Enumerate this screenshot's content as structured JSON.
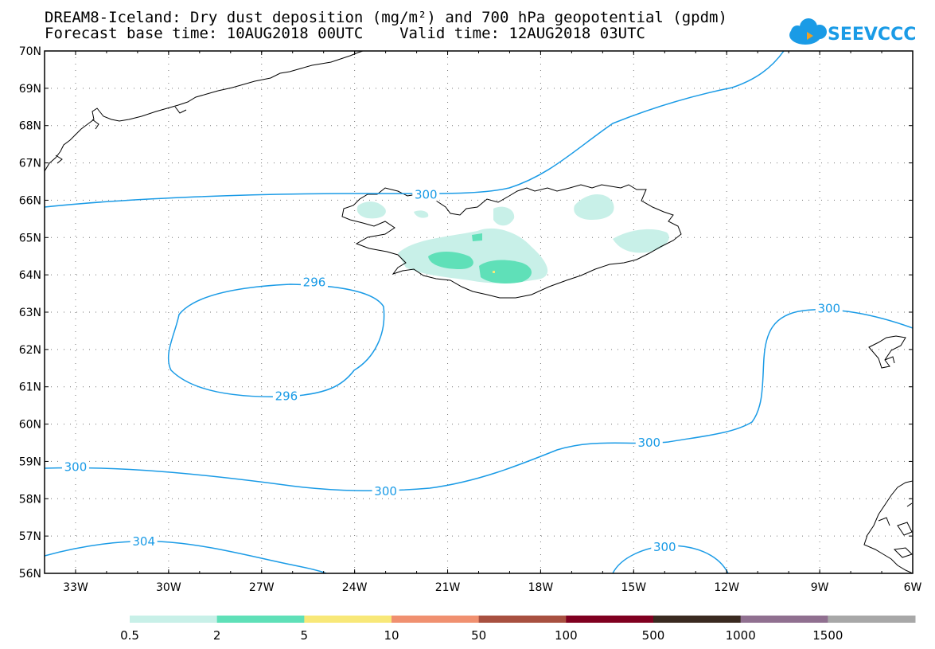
{
  "title_line1": "DREAM8-Iceland: Dry dust deposition (mg/m²) and 700 hPa geopotential (gpdm)",
  "title_line2": "Forecast base time: 10AUG2018 00UTC    Valid time: 12AUG2018 03UTC",
  "logo_text": "SEEVCCC",
  "colors": {
    "contour": "#1a9be6",
    "grid": "#777777",
    "coast": "#000000",
    "dust_light": "#c8f0e8",
    "dust_mid": "#5fe0b8"
  },
  "axes": {
    "lat_labels": [
      "70N",
      "69N",
      "68N",
      "67N",
      "66N",
      "65N",
      "64N",
      "63N",
      "62N",
      "61N",
      "60N",
      "59N",
      "58N",
      "57N",
      "56N"
    ],
    "lon_labels": [
      "33W",
      "30W",
      "27W",
      "24W",
      "21W",
      "18W",
      "15W",
      "12W",
      "9W",
      "6W"
    ]
  },
  "contour_labels": [
    {
      "text": "300",
      "lon": -21.7,
      "lat": 66.15
    },
    {
      "text": "296",
      "lon": -25.3,
      "lat": 63.8
    },
    {
      "text": "296",
      "lon": -26.2,
      "lat": 60.75
    },
    {
      "text": "300",
      "lon": -8.7,
      "lat": 63.1
    },
    {
      "text": "300",
      "lon": -33.0,
      "lat": 58.85
    },
    {
      "text": "300",
      "lon": -23.0,
      "lat": 58.2
    },
    {
      "text": "300",
      "lon": -14.5,
      "lat": 59.5
    },
    {
      "text": "304",
      "lon": -30.8,
      "lat": 56.85
    },
    {
      "text": "300",
      "lon": -14.0,
      "lat": 56.7
    }
  ],
  "legend": {
    "labels": [
      "0.5",
      "2",
      "5",
      "10",
      "50",
      "100",
      "500",
      "1000",
      "1500"
    ],
    "colors": [
      "#c8f0e8",
      "#5fe0b8",
      "#f8e878",
      "#f09070",
      "#a85040",
      "#800020",
      "#3a2a20",
      "#907090",
      "#a8a8a8"
    ]
  }
}
